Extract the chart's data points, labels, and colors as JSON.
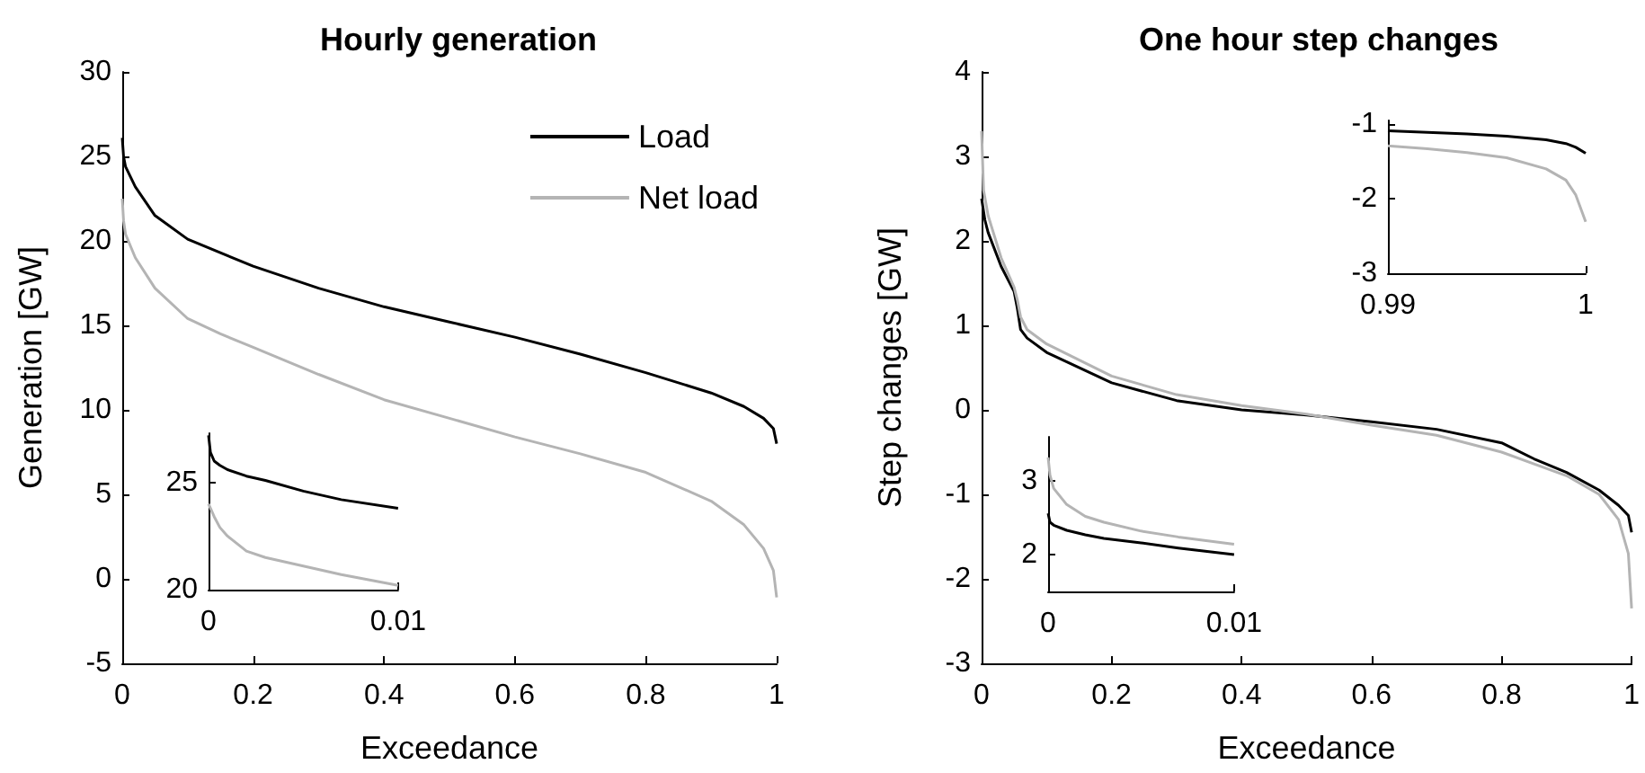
{
  "chart_data": [
    {
      "type": "line",
      "title": "Hourly generation",
      "xlabel": "Exceedance",
      "ylabel": "Generation [GW]",
      "xlim": [
        0,
        1
      ],
      "xticks": [
        0,
        0.2,
        0.4,
        0.6,
        0.8,
        1
      ],
      "ylim": [
        -5,
        30
      ],
      "yticks": [
        -5,
        0,
        5,
        10,
        15,
        20,
        25,
        30
      ],
      "legend": "top right",
      "grid": false,
      "series": [
        {
          "name": "Load",
          "color": "#000000",
          "x": [
            0,
            0.002,
            0.005,
            0.02,
            0.05,
            0.1,
            0.2,
            0.3,
            0.4,
            0.5,
            0.6,
            0.7,
            0.8,
            0.9,
            0.95,
            0.98,
            0.995,
            1
          ],
          "values": [
            26.1,
            25,
            24.4,
            23.2,
            21.5,
            20.1,
            18.5,
            17.2,
            16.1,
            15.2,
            14.3,
            13.3,
            12.2,
            11,
            10.2,
            9.5,
            8.9,
            8
          ]
        },
        {
          "name": "Net load",
          "color": "#b4b4b4",
          "x": [
            0,
            0.002,
            0.005,
            0.02,
            0.05,
            0.1,
            0.15,
            0.2,
            0.3,
            0.4,
            0.5,
            0.6,
            0.7,
            0.8,
            0.9,
            0.95,
            0.98,
            0.995,
            1
          ],
          "values": [
            22.5,
            21.2,
            20.4,
            19,
            17.2,
            15.4,
            14.5,
            13.7,
            12.1,
            10.6,
            9.5,
            8.4,
            7.4,
            6.3,
            4.6,
            3.2,
            1.8,
            0.5,
            -1.1
          ]
        }
      ]
    },
    {
      "type": "line",
      "xlim": [
        0,
        0.01
      ],
      "xticks": [
        0,
        0.01
      ],
      "ylim": [
        20,
        27.3
      ],
      "yticks": [
        20,
        25
      ],
      "grid": false,
      "series": [
        {
          "color": "#000000",
          "x": [
            0,
            0.0001,
            0.0003,
            0.0006,
            0.001,
            0.002,
            0.003,
            0.005,
            0.007,
            0.01
          ],
          "values": [
            27.2,
            26.4,
            26,
            25.8,
            25.6,
            25.3,
            25.1,
            24.6,
            24.2,
            23.8
          ]
        },
        {
          "color": "#b4b4b4",
          "x": [
            0,
            0.0003,
            0.0006,
            0.001,
            0.002,
            0.003,
            0.005,
            0.007,
            0.01
          ],
          "values": [
            24,
            23.4,
            22.9,
            22.5,
            21.8,
            21.5,
            21.1,
            20.7,
            20.2
          ]
        }
      ]
    },
    {
      "type": "line",
      "title": "One hour step changes",
      "xlabel": "Exceedance",
      "ylabel": "Step changes [GW]",
      "xlim": [
        0,
        1
      ],
      "xticks": [
        0,
        0.2,
        0.4,
        0.6,
        0.8,
        1
      ],
      "ylim": [
        -3,
        4
      ],
      "yticks": [
        -3,
        -2,
        -1,
        0,
        1,
        2,
        3,
        4
      ],
      "grid": false,
      "series": [
        {
          "color": "#000000",
          "x": [
            0,
            0.005,
            0.01,
            0.03,
            0.05,
            0.055,
            0.06,
            0.07,
            0.1,
            0.2,
            0.3,
            0.4,
            0.5,
            0.6,
            0.7,
            0.8,
            0.85,
            0.9,
            0.95,
            0.98,
            0.995,
            1
          ],
          "values": [
            2.5,
            2.25,
            2.1,
            1.7,
            1.4,
            1.2,
            0.95,
            0.85,
            0.68,
            0.32,
            0.11,
            0,
            -0.06,
            -0.14,
            -0.23,
            -0.39,
            -0.58,
            -0.74,
            -0.95,
            -1.13,
            -1.25,
            -1.45
          ]
        },
        {
          "color": "#b4b4b4",
          "x": [
            0,
            0.003,
            0.01,
            0.03,
            0.05,
            0.055,
            0.06,
            0.07,
            0.1,
            0.2,
            0.3,
            0.4,
            0.5,
            0.6,
            0.7,
            0.8,
            0.9,
            0.95,
            0.98,
            0.995,
            1
          ],
          "values": [
            3.3,
            2.6,
            2.3,
            1.8,
            1.45,
            1.3,
            1.1,
            0.95,
            0.78,
            0.4,
            0.18,
            0.05,
            -0.05,
            -0.18,
            -0.3,
            -0.5,
            -0.78,
            -1,
            -1.3,
            -1.7,
            -2.35
          ]
        }
      ]
    },
    {
      "type": "line",
      "xlim": [
        0.99,
        1
      ],
      "xticks": [
        0.99,
        1
      ],
      "ylim": [
        -3,
        -0.95
      ],
      "yticks": [
        -3,
        -2,
        -1
      ],
      "grid": false,
      "series": [
        {
          "color": "#000000",
          "x": [
            0.99,
            0.992,
            0.994,
            0.996,
            0.998,
            0.999,
            0.9995,
            1
          ],
          "values": [
            -1.09,
            -1.11,
            -1.13,
            -1.16,
            -1.21,
            -1.26,
            -1.31,
            -1.39
          ]
        },
        {
          "color": "#b4b4b4",
          "x": [
            0.99,
            0.992,
            0.994,
            0.996,
            0.998,
            0.999,
            0.9995,
            1
          ],
          "values": [
            -1.29,
            -1.33,
            -1.38,
            -1.45,
            -1.6,
            -1.75,
            -1.95,
            -2.31
          ]
        }
      ]
    },
    {
      "type": "line",
      "xlim": [
        0,
        0.01
      ],
      "xticks": [
        0,
        0.01
      ],
      "ylim": [
        1.5,
        3.6
      ],
      "yticks": [
        2,
        3
      ],
      "grid": false,
      "series": [
        {
          "color": "#000000",
          "x": [
            0,
            0.0001,
            0.0003,
            0.001,
            0.002,
            0.003,
            0.005,
            0.007,
            0.01
          ],
          "values": [
            2.56,
            2.44,
            2.4,
            2.33,
            2.27,
            2.22,
            2.16,
            2.09,
            2
          ]
        },
        {
          "color": "#b4b4b4",
          "x": [
            0,
            0.0001,
            0.0003,
            0.001,
            0.002,
            0.003,
            0.005,
            0.007,
            0.01
          ],
          "values": [
            3.32,
            3.08,
            2.9,
            2.68,
            2.52,
            2.44,
            2.32,
            2.24,
            2.14
          ]
        }
      ]
    }
  ]
}
